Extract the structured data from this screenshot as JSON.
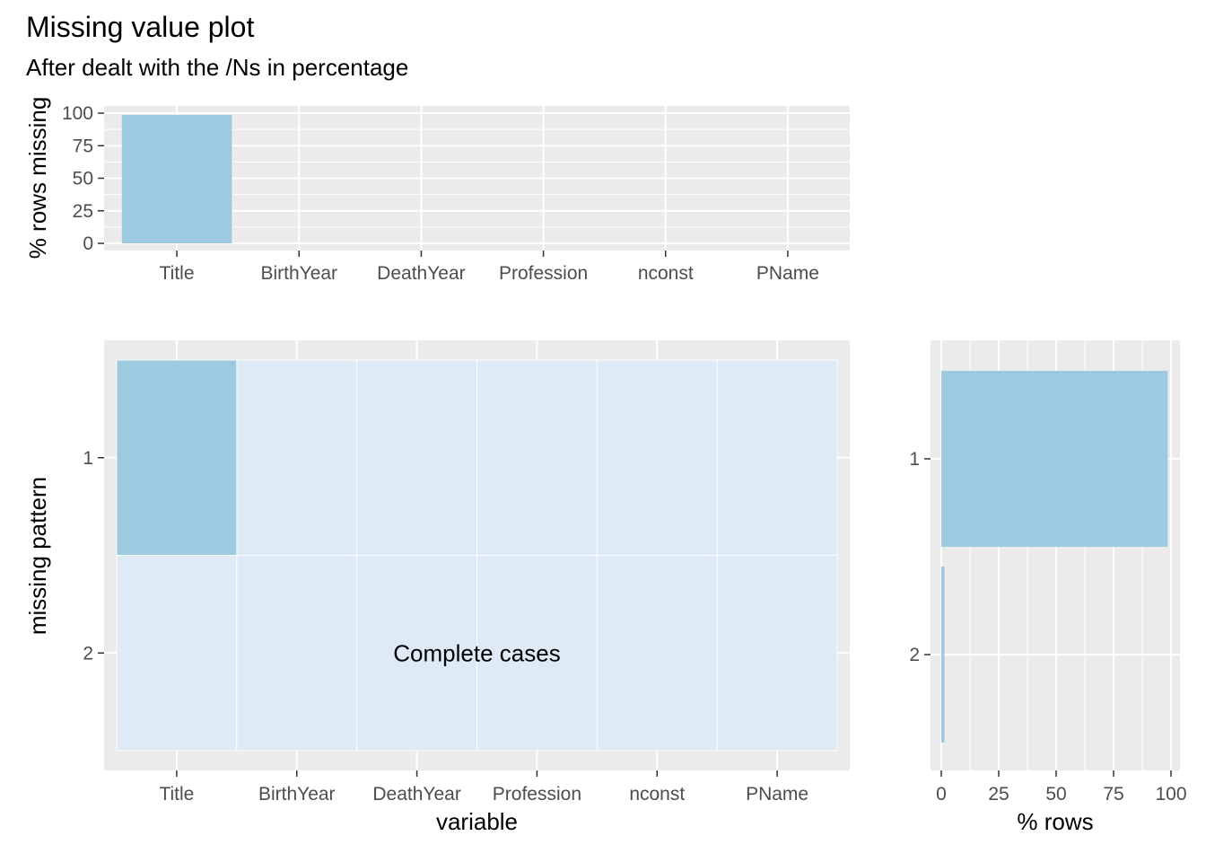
{
  "title": "Missing value plot",
  "subtitle": "After dealt with the /Ns in percentage",
  "colors": {
    "panel": "#ebebeb",
    "grid": "#ffffff",
    "missing": "#9ecae1",
    "present": "#deebf7",
    "tick_text": "#4d4d4d"
  },
  "chart_data": [
    {
      "type": "bar",
      "name_hint": "top",
      "categories": [
        "Title",
        "BirthYear",
        "DeathYear",
        "Profession",
        "nconst",
        "PName"
      ],
      "values": [
        98.6,
        0,
        0,
        0,
        0,
        0
      ],
      "xlabel": "",
      "ylabel": "% rows missing",
      "ylim": [
        0,
        100
      ],
      "yticks": [
        0,
        25,
        50,
        75,
        100
      ],
      "grid": true
    },
    {
      "type": "heatmap",
      "name_hint": "pattern",
      "x": [
        "Title",
        "BirthYear",
        "DeathYear",
        "Profession",
        "nconst",
        "PName"
      ],
      "y": [
        "1",
        "2"
      ],
      "missing": [
        [
          1,
          0,
          0,
          0,
          0,
          0
        ],
        [
          0,
          0,
          0,
          0,
          0,
          0
        ]
      ],
      "annotation": "Complete cases",
      "annotation_row": "2",
      "xlabel": "variable",
      "ylabel": "missing pattern"
    },
    {
      "type": "bar",
      "name_hint": "rows",
      "orientation": "horizontal",
      "categories": [
        "1",
        "2"
      ],
      "values": [
        98.6,
        1.4
      ],
      "xlabel": "% rows",
      "xlim": [
        0,
        100
      ],
      "xticks": [
        0,
        25,
        50,
        75,
        100
      ],
      "grid": true
    }
  ]
}
